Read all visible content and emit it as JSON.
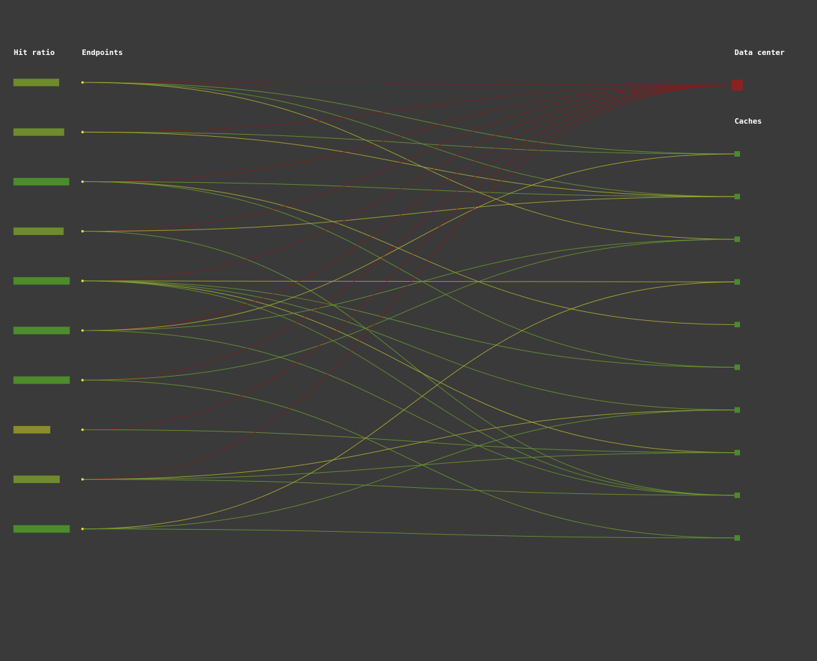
{
  "headers": {
    "hit_ratio": "Hit ratio",
    "endpoints": "Endpoints",
    "data_center": "Data center",
    "caches": "Caches"
  },
  "colors": {
    "background": "#3a3a3a",
    "hit_high": "#4c8c2c",
    "hit_mid": "#6e8c2c",
    "hit_low": "#8c8c2c",
    "endpoint_dot": "#e0e040",
    "cache_node": "#4a8a2a",
    "data_center_node": "#8b2222",
    "link_green": "#6a9a30",
    "link_yellow": "#b0b030",
    "link_red": "#8b1a1a"
  },
  "endpoints": [
    {
      "hit_ratio": 0.81
    },
    {
      "hit_ratio": 0.9
    },
    {
      "hit_ratio": 0.99
    },
    {
      "hit_ratio": 0.89
    },
    {
      "hit_ratio": 1.0
    },
    {
      "hit_ratio": 1.0
    },
    {
      "hit_ratio": 1.0
    },
    {
      "hit_ratio": 0.65
    },
    {
      "hit_ratio": 0.82
    },
    {
      "hit_ratio": 1.0
    }
  ],
  "caches_count": 10,
  "links": [
    {
      "from": 0,
      "to": "dc"
    },
    {
      "from": 0,
      "to": 1
    },
    {
      "from": 0,
      "to": 2
    },
    {
      "from": 0,
      "to": 3
    },
    {
      "from": 1,
      "to": "dc"
    },
    {
      "from": 1,
      "to": 1
    },
    {
      "from": 1,
      "to": 2
    },
    {
      "from": 2,
      "to": "dc"
    },
    {
      "from": 2,
      "to": 2
    },
    {
      "from": 2,
      "to": 5
    },
    {
      "from": 2,
      "to": 6
    },
    {
      "from": 3,
      "to": "dc"
    },
    {
      "from": 3,
      "to": 2
    },
    {
      "from": 3,
      "to": 9
    },
    {
      "from": 4,
      "to": "dc"
    },
    {
      "from": 4,
      "to": 4
    },
    {
      "from": 4,
      "to": 6
    },
    {
      "from": 4,
      "to": 7
    },
    {
      "from": 4,
      "to": 8
    },
    {
      "from": 4,
      "to": 9
    },
    {
      "from": 5,
      "to": "dc"
    },
    {
      "from": 5,
      "to": 1
    },
    {
      "from": 5,
      "to": 3
    },
    {
      "from": 5,
      "to": 9
    },
    {
      "from": 6,
      "to": "dc"
    },
    {
      "from": 6,
      "to": 3
    },
    {
      "from": 6,
      "to": 10
    },
    {
      "from": 7,
      "to": "dc"
    },
    {
      "from": 7,
      "to": 8
    },
    {
      "from": 8,
      "to": "dc"
    },
    {
      "from": 8,
      "to": 7
    },
    {
      "from": 8,
      "to": 8
    },
    {
      "from": 8,
      "to": 9
    },
    {
      "from": 9,
      "to": 4
    },
    {
      "from": 9,
      "to": 7
    },
    {
      "from": 9,
      "to": 10
    }
  ]
}
